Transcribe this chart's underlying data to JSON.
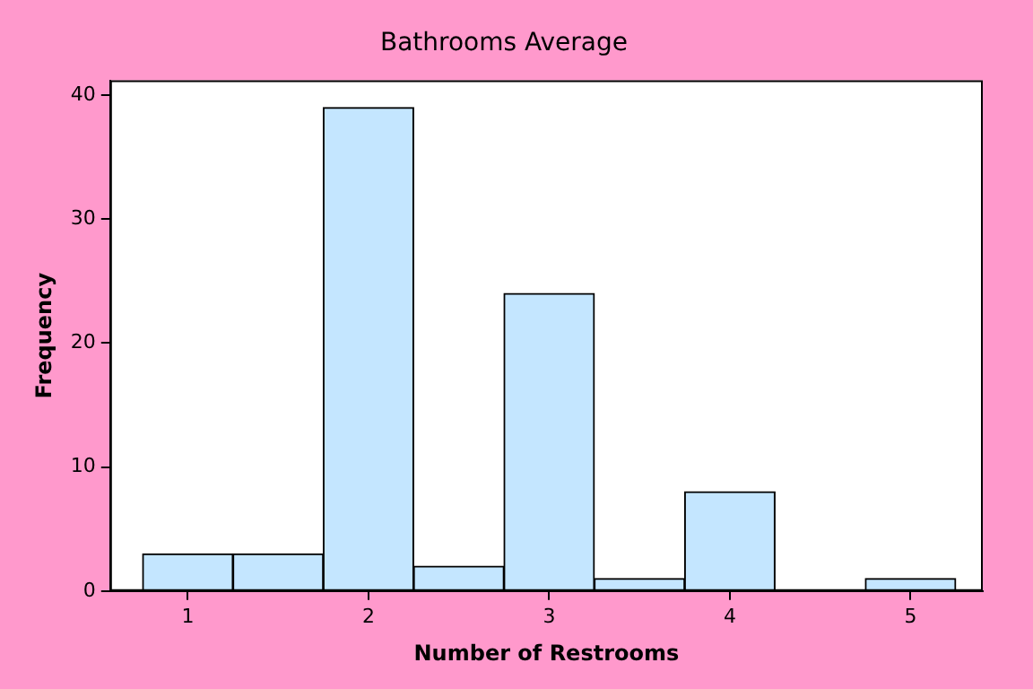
{
  "chart_data": {
    "type": "histogram",
    "title": "Bathrooms Average",
    "xlabel": "Number of Restrooms",
    "ylabel": "Frequency",
    "bins": [
      0.75,
      1.25,
      1.75,
      2.25,
      2.75,
      3.25,
      3.75,
      4.25,
      4.75,
      5.25
    ],
    "values": [
      3,
      3,
      39,
      2,
      24,
      1,
      8,
      0,
      1
    ],
    "color": "#c4e6ff",
    "xlim": [
      0.57,
      5.4
    ],
    "xticks": [
      1,
      2,
      3,
      4,
      5
    ],
    "ylim": [
      0,
      41.2
    ],
    "yticks": [
      0,
      10,
      20,
      30,
      40
    ],
    "grid": false,
    "legend": false
  }
}
